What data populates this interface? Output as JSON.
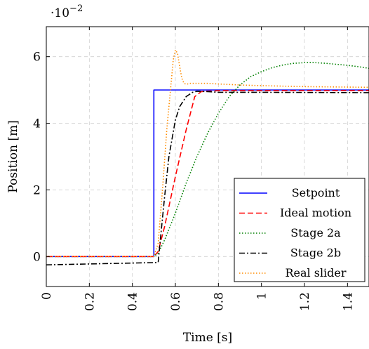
{
  "chart_data": {
    "type": "line",
    "xlabel": "Time [s]",
    "ylabel": "Position [m]",
    "y_scale_label": "·10",
    "y_scale_exp": "−2",
    "xlim": [
      0,
      1.5
    ],
    "ylim": [
      -0.9,
      6.9
    ],
    "xticks": [
      0,
      0.2,
      0.4,
      0.6,
      0.8,
      1,
      1.2,
      1.4
    ],
    "xtick_labels": [
      "0",
      "0.2",
      "0.4",
      "0.6",
      "0.8",
      "1",
      "1.2",
      "1.4"
    ],
    "yticks": [
      0,
      2,
      4,
      6
    ],
    "ytick_labels": [
      "0",
      "2",
      "4",
      "6"
    ],
    "grid": true,
    "legend_position": "bottom-right",
    "series": [
      {
        "name": "Setpoint",
        "color": "#0000ff",
        "style": "solid",
        "x": [
          0,
          0.5,
          0.5,
          1.5
        ],
        "y": [
          0,
          0,
          5,
          5
        ]
      },
      {
        "name": "Ideal motion",
        "color": "#ff0000",
        "style": "dashed",
        "x": [
          0,
          0.5,
          0.52,
          0.55,
          0.6,
          0.65,
          0.69,
          0.72,
          0.8,
          1.0,
          1.5
        ],
        "y": [
          0,
          0,
          0.15,
          0.9,
          2.4,
          3.8,
          4.8,
          4.95,
          4.98,
          4.98,
          4.98
        ]
      },
      {
        "name": "Stage 2a",
        "color": "#008000",
        "style": "dotted",
        "x": [
          0,
          0.5,
          0.52,
          0.55,
          0.6,
          0.65,
          0.7,
          0.75,
          0.8,
          0.85,
          0.9,
          0.95,
          1.0,
          1.05,
          1.1,
          1.15,
          1.2,
          1.25,
          1.3,
          1.35,
          1.4,
          1.45,
          1.5
        ],
        "y": [
          0,
          0,
          0.1,
          0.5,
          1.3,
          2.2,
          3.0,
          3.7,
          4.3,
          4.8,
          5.15,
          5.4,
          5.55,
          5.67,
          5.75,
          5.8,
          5.82,
          5.82,
          5.8,
          5.77,
          5.74,
          5.7,
          5.65
        ]
      },
      {
        "name": "Stage 2b",
        "color": "#000000",
        "style": "dashdot",
        "x": [
          0,
          0.52,
          0.53,
          0.55,
          0.57,
          0.6,
          0.62,
          0.65,
          0.68,
          0.7,
          0.75,
          0.8,
          1.0,
          1.5
        ],
        "y": [
          -0.25,
          -0.18,
          0.5,
          1.8,
          3.0,
          4.1,
          4.5,
          4.8,
          4.93,
          4.96,
          4.95,
          4.93,
          4.93,
          4.92
        ]
      },
      {
        "name": "Real slider",
        "color": "#ff8c00",
        "style": "dotted",
        "x": [
          0,
          0.5,
          0.52,
          0.54,
          0.56,
          0.58,
          0.59,
          0.6,
          0.61,
          0.62,
          0.63,
          0.64,
          0.65,
          0.67,
          0.7,
          0.75,
          0.8,
          0.9,
          1.0,
          1.2,
          1.5
        ],
        "y": [
          0,
          0,
          0.4,
          2.0,
          3.8,
          5.2,
          5.9,
          6.2,
          6.1,
          5.7,
          5.35,
          5.2,
          5.17,
          5.2,
          5.2,
          5.2,
          5.18,
          5.15,
          5.13,
          5.1,
          5.08
        ]
      }
    ]
  }
}
